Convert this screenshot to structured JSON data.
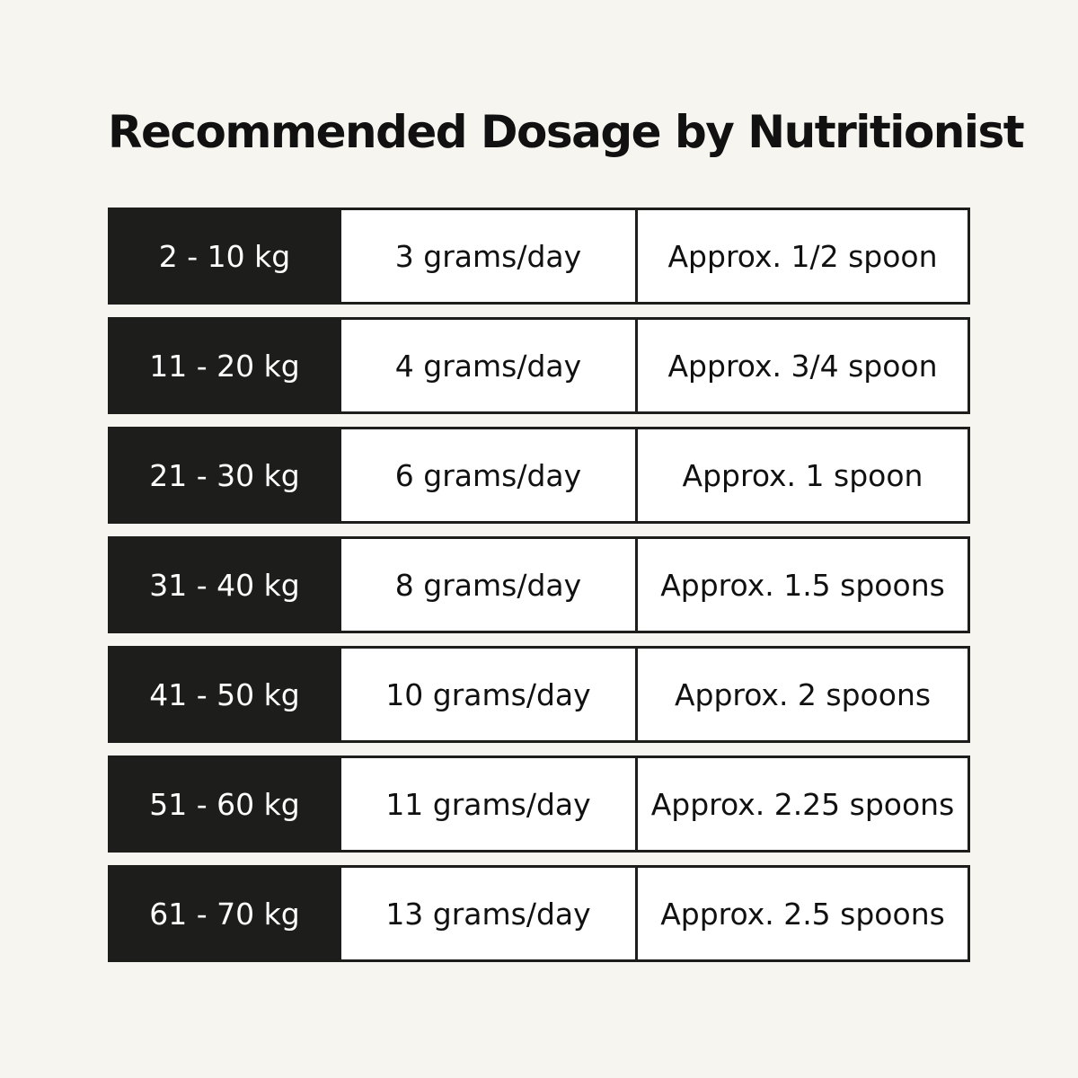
{
  "header": {
    "title": "Recommended Dosage by Nutritionist"
  },
  "table": {
    "rows": [
      [
        "2 - 10 kg",
        "3 grams/day",
        "Approx. 1/2 spoon"
      ],
      [
        "11 - 20 kg",
        "4 grams/day",
        "Approx. 3/4 spoon"
      ],
      [
        "21 - 30 kg",
        "6 grams/day",
        "Approx. 1 spoon"
      ],
      [
        "31 - 40 kg",
        "8 grams/day",
        "Approx. 1.5 spoons"
      ],
      [
        "41 - 50 kg",
        "10 grams/day",
        "Approx. 2 spoons"
      ],
      [
        "51 - 60 kg",
        "11 grams/day",
        "Approx. 2.25 spoons"
      ],
      [
        "61 - 70 kg",
        "13 grams/day",
        "Approx. 2.5 spoons"
      ]
    ]
  }
}
